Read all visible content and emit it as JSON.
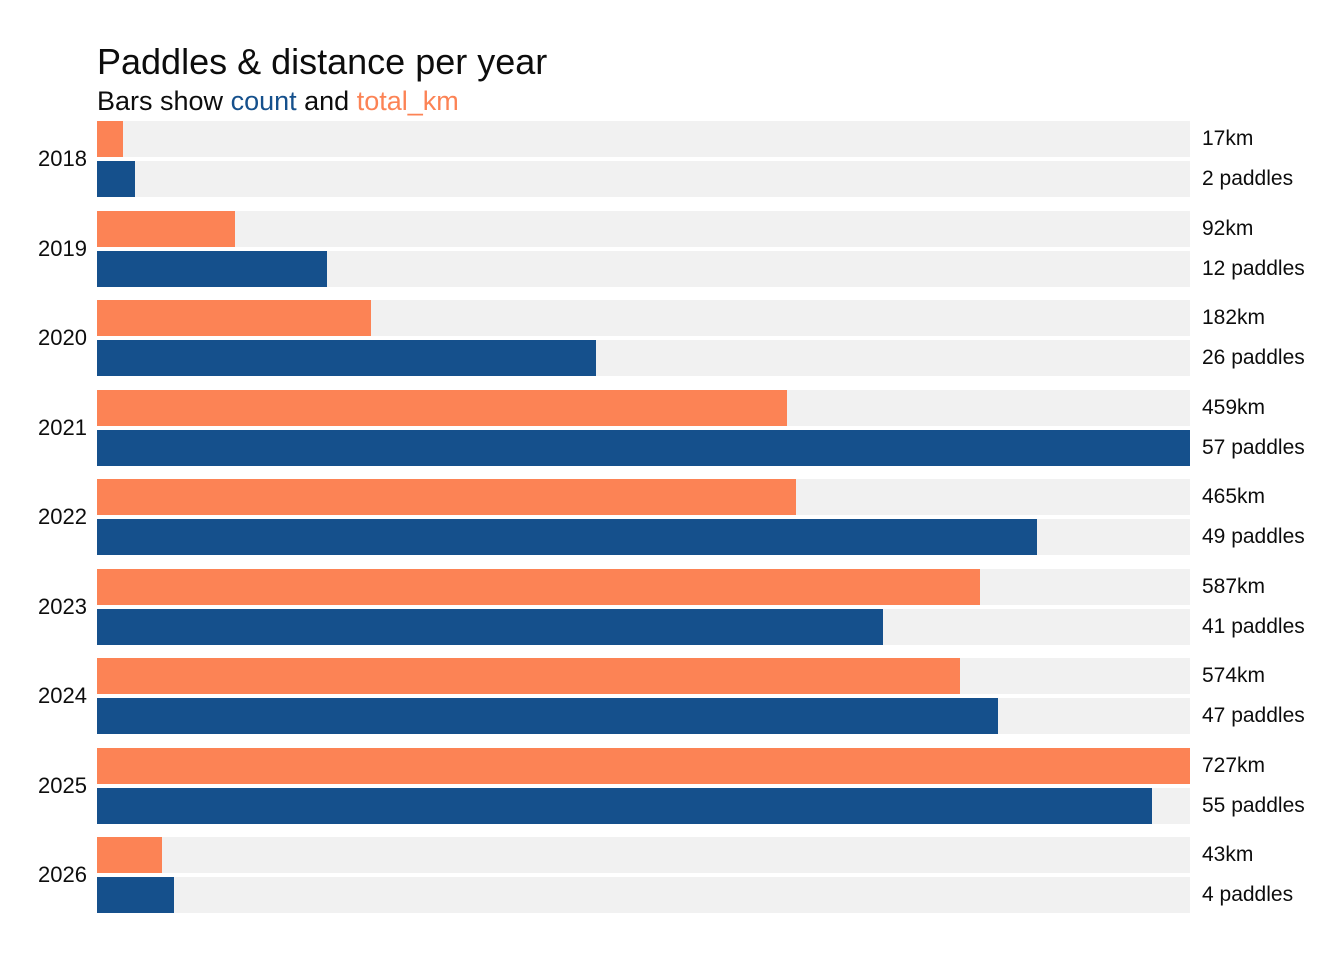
{
  "header": {
    "title": "Paddles & distance per year",
    "subtitle": {
      "prefix": "Bars show ",
      "count_word": "count",
      "connector": " and ",
      "km_word": "total_km"
    }
  },
  "colors": {
    "count": "#15508C",
    "total_km": "#FC8355",
    "bar_track": "#F1F1F1",
    "text": "#0D0D0D"
  },
  "chart_data": {
    "type": "bar",
    "orientation": "horizontal",
    "title": "Paddles & distance per year",
    "subtitle": "Bars show count and total_km",
    "categories": [
      "2018",
      "2019",
      "2020",
      "2021",
      "2022",
      "2023",
      "2024",
      "2025",
      "2026"
    ],
    "series": [
      {
        "name": "total_km",
        "color": "#FC8355",
        "scale_max": 727,
        "values": [
          17,
          92,
          182,
          459,
          465,
          587,
          574,
          727,
          43
        ],
        "labels": [
          "17km",
          "92km",
          "182km",
          "459km",
          "465km",
          "587km",
          "574km",
          "727km",
          "43km"
        ]
      },
      {
        "name": "count",
        "color": "#15508C",
        "scale_max": 57,
        "values": [
          2,
          12,
          26,
          57,
          49,
          41,
          47,
          55,
          4
        ],
        "labels": [
          "2 paddles",
          "12 paddles",
          "26 paddles",
          "57 paddles",
          "49 paddles",
          "41 paddles",
          "47 paddles",
          "55 paddles",
          "4 paddles"
        ]
      }
    ],
    "layout_hints": {
      "each_series_scaled_to_own_max": true,
      "bar_background": "#F1F1F1",
      "value_labels_position": "right",
      "category_labels_position": "left",
      "legend": "inline-in-subtitle",
      "grid": false
    }
  }
}
